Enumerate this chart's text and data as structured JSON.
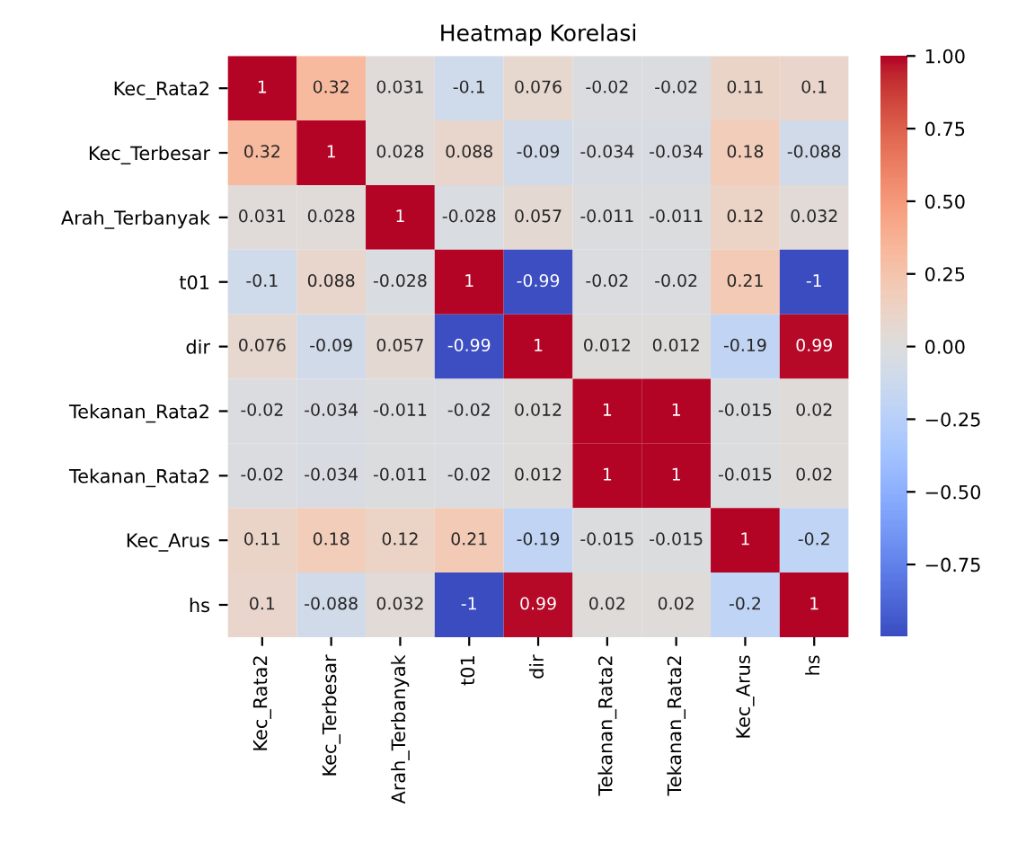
{
  "chart_data": {
    "type": "heatmap",
    "title": "Heatmap Korelasi",
    "categories": [
      "Kec_Rata2",
      "Kec_Terbesar",
      "Arah_Terbanyak",
      "t01",
      "dir",
      "Tekanan_Rata2",
      "Tekanan_Rata2",
      "Kec_Arus",
      "hs"
    ],
    "y_categories": [
      "Kec_Rata2",
      "Kec_Terbesar",
      "Arah_Terbanyak",
      "t01",
      "dir",
      "Tekanan_Rata2",
      "Tekanan_Rata2",
      "Kec_Arus",
      "hs"
    ],
    "cells": [
      [
        1,
        0.32,
        0.031,
        -0.1,
        0.076,
        -0.02,
        -0.02,
        0.11,
        0.1
      ],
      [
        0.32,
        1,
        0.028,
        0.088,
        -0.09,
        -0.034,
        -0.034,
        0.18,
        -0.088
      ],
      [
        0.031,
        0.028,
        1,
        -0.028,
        0.057,
        -0.011,
        -0.011,
        0.12,
        0.032
      ],
      [
        -0.1,
        0.088,
        -0.028,
        1,
        -0.99,
        -0.02,
        -0.02,
        0.21,
        -1
      ],
      [
        0.076,
        -0.09,
        0.057,
        -0.99,
        1,
        0.012,
        0.012,
        -0.19,
        0.99
      ],
      [
        -0.02,
        -0.034,
        -0.011,
        -0.02,
        0.012,
        1,
        1,
        -0.015,
        0.02
      ],
      [
        -0.02,
        -0.034,
        -0.011,
        -0.02,
        0.012,
        1,
        1,
        -0.015,
        0.02
      ],
      [
        0.11,
        0.18,
        0.12,
        0.21,
        -0.19,
        -0.015,
        -0.015,
        1,
        -0.2
      ],
      [
        0.1,
        -0.088,
        0.032,
        -1,
        0.99,
        0.02,
        0.02,
        -0.2,
        1
      ]
    ],
    "data_labels": true,
    "clim": [
      -1,
      1
    ],
    "cticks": [
      {
        "value": -0.75,
        "label": "−0.75"
      },
      {
        "value": -0.5,
        "label": "−0.50"
      },
      {
        "value": -0.25,
        "label": "−0.25"
      },
      {
        "value": 0,
        "label": "0.00"
      },
      {
        "value": 0.25,
        "label": "0.25"
      },
      {
        "value": 0.5,
        "label": "0.50"
      },
      {
        "value": 0.75,
        "label": "0.75"
      },
      {
        "value": 1,
        "label": "1.00"
      }
    ]
  }
}
